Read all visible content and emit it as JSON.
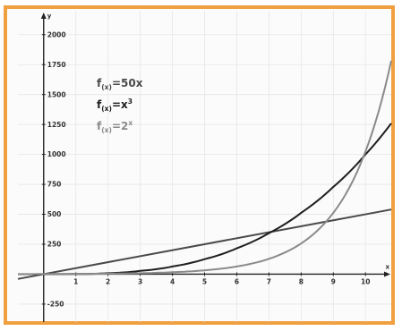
{
  "chart_data": {
    "type": "line",
    "title": "",
    "xlabel": "x",
    "ylabel": "y",
    "xlim": [
      -0.8,
      10.8
    ],
    "ylim": [
      -400,
      2200
    ],
    "x_ticks": [
      1,
      2,
      3,
      4,
      5,
      6,
      7,
      8,
      9,
      10
    ],
    "x_tick_labels": [
      "1",
      "2",
      "3",
      "4",
      "5",
      "6",
      "7",
      "8",
      "9",
      "10"
    ],
    "y_ticks": [
      -250,
      250,
      500,
      750,
      1000,
      1250,
      1500,
      1750,
      2000
    ],
    "y_tick_labels": [
      "-250",
      "250",
      "500",
      "750",
      "1000",
      "1250",
      "1500",
      "1750",
      "2000"
    ],
    "grid": true,
    "legend_position": "top-left",
    "series": [
      {
        "name": "f(x)=50x",
        "legend": {
          "base": "f",
          "sub": "(x)",
          "mid": "=50x",
          "sup": ""
        },
        "color": "#4a4a4a",
        "x": [
          -0.8,
          10.8
        ],
        "y": [
          -40,
          540
        ]
      },
      {
        "name": "f(x)=x³",
        "legend": {
          "base": "f",
          "sub": "(x)",
          "mid": "=x",
          "sup": "3"
        },
        "color": "#1e1e1e",
        "x": [
          -0.8,
          0,
          1,
          2,
          3,
          4,
          5,
          6,
          7,
          8,
          9,
          10,
          10.8
        ],
        "y": [
          -0.5,
          0,
          1,
          8,
          27,
          64,
          125,
          216,
          343,
          512,
          729,
          1000,
          1260
        ]
      },
      {
        "name": "f(x)=2ˣ",
        "legend": {
          "base": "f",
          "sub": "(x)",
          "mid": "=2",
          "sup": "x"
        },
        "color": "#8a8a8a",
        "x": [
          -0.8,
          0,
          1,
          2,
          3,
          4,
          5,
          6,
          7,
          8,
          9,
          10,
          10.8
        ],
        "y": [
          0.6,
          1,
          2,
          4,
          8,
          16,
          32,
          64,
          128,
          256,
          512,
          1024,
          1783
        ]
      }
    ]
  }
}
